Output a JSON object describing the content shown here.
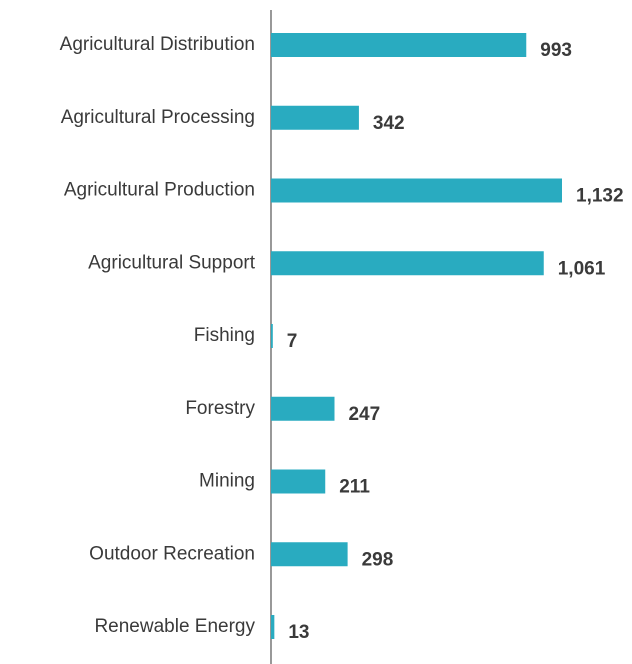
{
  "chart_data": {
    "type": "bar",
    "orientation": "horizontal",
    "categories": [
      "Agricultural Distribution",
      "Agricultural Processing",
      "Agricultural Production",
      "Agricultural Support",
      "Fishing",
      "Forestry",
      "Mining",
      "Outdoor Recreation",
      "Renewable Energy"
    ],
    "values": [
      993,
      342,
      1132,
      1061,
      7,
      247,
      211,
      298,
      13
    ],
    "value_labels": [
      "993",
      "342",
      "1,132",
      "1,061",
      "7",
      "247",
      "211",
      "298",
      "13"
    ],
    "color": "#29abc0"
  }
}
